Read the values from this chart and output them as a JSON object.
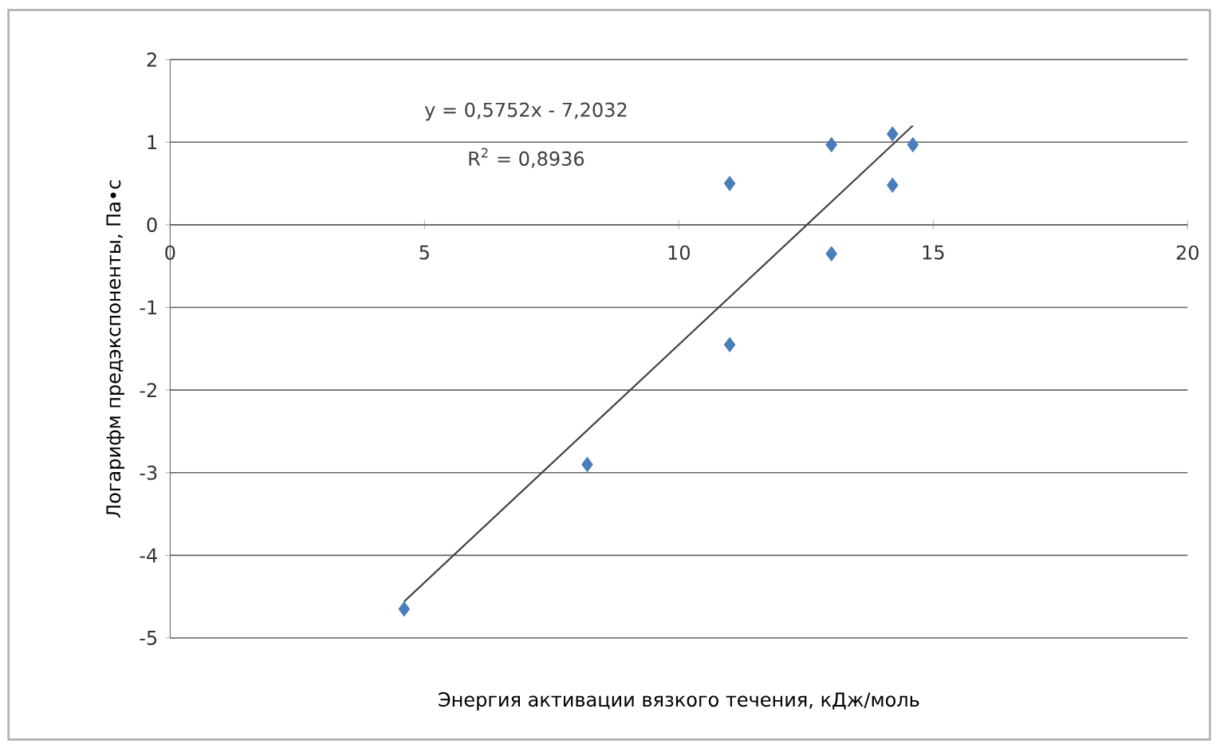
{
  "chart_data": {
    "type": "scatter",
    "xlabel": "Энергия активации вязкого течения, кДж/моль",
    "ylabel": "Логарифм предэкспоненты, Па•с",
    "x": [
      4.6,
      8.2,
      11,
      11,
      13,
      13,
      14.2,
      14.2,
      14.6
    ],
    "series": [
      {
        "color": "#4a7ebb",
        "marker": "diamond",
        "values": [
          -4.65,
          -2.9,
          0.5,
          -1.45,
          0.97,
          -0.35,
          1.1,
          0.48,
          0.97
        ]
      },
      {
        "type": "line",
        "color": "#404040",
        "marker": "none",
        "x": [
          4.6,
          14.6
        ],
        "values": [
          -4.56,
          1.2
        ]
      }
    ],
    "xlim": [
      0,
      20
    ],
    "xticks": [
      0,
      5,
      10,
      15,
      20
    ],
    "ylim": [
      -5,
      2
    ],
    "yticks": [
      2,
      1,
      0,
      -1,
      -2,
      -3,
      -4,
      -5
    ],
    "grid": "y",
    "annotations": [
      "y = 0,5752x - 7,2032",
      "R$^{2}$ = 0,8936"
    ]
  }
}
